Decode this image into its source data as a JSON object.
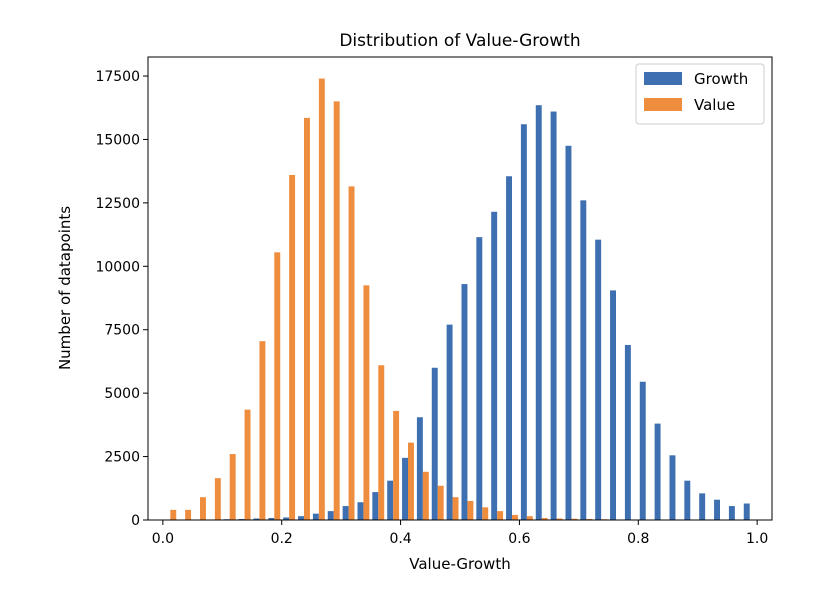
{
  "chart_data": {
    "type": "bar",
    "title": "Distribution of Value-Growth",
    "xlabel": "Value-Growth",
    "ylabel": "Number of datapoints",
    "xlim": [
      -0.025,
      1.025
    ],
    "ylim": [
      0,
      18250
    ],
    "xticks": [
      0.0,
      0.2,
      0.4,
      0.6,
      0.8,
      1.0
    ],
    "xtick_labels": [
      "0.0",
      "0.2",
      "0.4",
      "0.6",
      "0.8",
      "1.0"
    ],
    "yticks": [
      0,
      2500,
      5000,
      7500,
      10000,
      12500,
      15000,
      17500
    ],
    "ytick_labels": [
      "0",
      "2500",
      "5000",
      "7500",
      "10000",
      "12500",
      "15000",
      "17500"
    ],
    "grid": false,
    "legend_position": "top-right",
    "bin_centers": [
      0.0125,
      0.0375,
      0.0625,
      0.0875,
      0.1125,
      0.1375,
      0.1625,
      0.1875,
      0.2125,
      0.2375,
      0.2625,
      0.2875,
      0.3125,
      0.3375,
      0.3625,
      0.3875,
      0.4125,
      0.4375,
      0.4625,
      0.4875,
      0.5125,
      0.5375,
      0.5625,
      0.5875,
      0.6125,
      0.6375,
      0.6625,
      0.6875,
      0.7125,
      0.7375,
      0.7625,
      0.7875,
      0.8125,
      0.8375,
      0.8625,
      0.8875,
      0.9125,
      0.9375,
      0.9625,
      0.9875
    ],
    "series": [
      {
        "name": "Growth",
        "color": "#3e6fb0",
        "values": [
          0,
          0,
          10,
          20,
          30,
          40,
          60,
          80,
          100,
          150,
          250,
          350,
          550,
          700,
          1100,
          1550,
          2450,
          4050,
          6000,
          7700,
          9300,
          11150,
          12150,
          13550,
          15600,
          16350,
          16100,
          14750,
          12600,
          11050,
          9050,
          6900,
          5450,
          3800,
          2550,
          1550,
          1050,
          800,
          550,
          650
        ]
      },
      {
        "name": "Value",
        "color": "#ef8d3f",
        "values": [
          400,
          400,
          900,
          1650,
          2600,
          4350,
          7050,
          10550,
          13600,
          15850,
          17400,
          16500,
          13150,
          9250,
          6100,
          4300,
          3050,
          1900,
          1350,
          900,
          750,
          500,
          350,
          200,
          150,
          80,
          60,
          50,
          40,
          30,
          20,
          10,
          5,
          5,
          0,
          0,
          0,
          0,
          0,
          0
        ]
      }
    ]
  }
}
